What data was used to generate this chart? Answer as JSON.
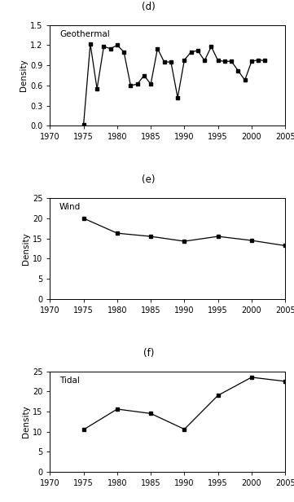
{
  "geothermal": {
    "label": "(d)",
    "title": "Geothermal",
    "ylabel": "Density",
    "xlim": [
      1970,
      2005
    ],
    "ylim": [
      0,
      1.5
    ],
    "yticks": [
      0,
      0.3,
      0.6,
      0.9,
      1.2,
      1.5
    ],
    "xticks": [
      1970,
      1975,
      1980,
      1985,
      1990,
      1995,
      2000,
      2005
    ],
    "x": [
      1975,
      1976,
      1977,
      1978,
      1979,
      1980,
      1981,
      1982,
      1983,
      1984,
      1985,
      1986,
      1987,
      1988,
      1989,
      1990,
      1991,
      1992,
      1993,
      1994,
      1995,
      1996,
      1997,
      1998,
      1999,
      2000,
      2001,
      2002
    ],
    "y": [
      0.02,
      1.22,
      0.55,
      1.18,
      1.15,
      1.2,
      1.1,
      0.6,
      0.62,
      0.75,
      0.62,
      1.15,
      0.95,
      0.95,
      0.42,
      0.98,
      1.1,
      1.12,
      0.97,
      1.18,
      0.97,
      0.96,
      0.96,
      0.82,
      0.68,
      0.96,
      0.98,
      0.97
    ]
  },
  "wind": {
    "label": "(e)",
    "title": "Wind",
    "ylabel": "Density",
    "xlim": [
      1970,
      2005
    ],
    "ylim": [
      0,
      25
    ],
    "yticks": [
      0,
      5,
      10,
      15,
      20,
      25
    ],
    "xticks": [
      1970,
      1975,
      1980,
      1985,
      1990,
      1995,
      2000,
      2005
    ],
    "x": [
      1975,
      1980,
      1985,
      1990,
      1995,
      2000,
      2005
    ],
    "y": [
      20.0,
      16.3,
      15.5,
      14.3,
      15.5,
      14.5,
      13.2
    ]
  },
  "tidal": {
    "label": "(f)",
    "title": "Tidal",
    "ylabel": "Density",
    "xlim": [
      1970,
      2005
    ],
    "ylim": [
      0,
      25
    ],
    "yticks": [
      0,
      5,
      10,
      15,
      20,
      25
    ],
    "xticks": [
      1970,
      1975,
      1980,
      1985,
      1990,
      1995,
      2000,
      2005
    ],
    "x": [
      1975,
      1980,
      1985,
      1990,
      1995,
      2000,
      2005
    ],
    "y": [
      10.5,
      15.6,
      14.5,
      10.6,
      19.0,
      23.5,
      22.5
    ]
  },
  "line_color": "#000000",
  "marker": "s",
  "markersize": 3.5,
  "linewidth": 0.9,
  "bg_color": "#ffffff",
  "spine_color": "#000000",
  "tick_fontsize": 7,
  "label_fontsize": 7.5,
  "panel_label_fontsize": 8.5,
  "title_fontsize": 7.5
}
